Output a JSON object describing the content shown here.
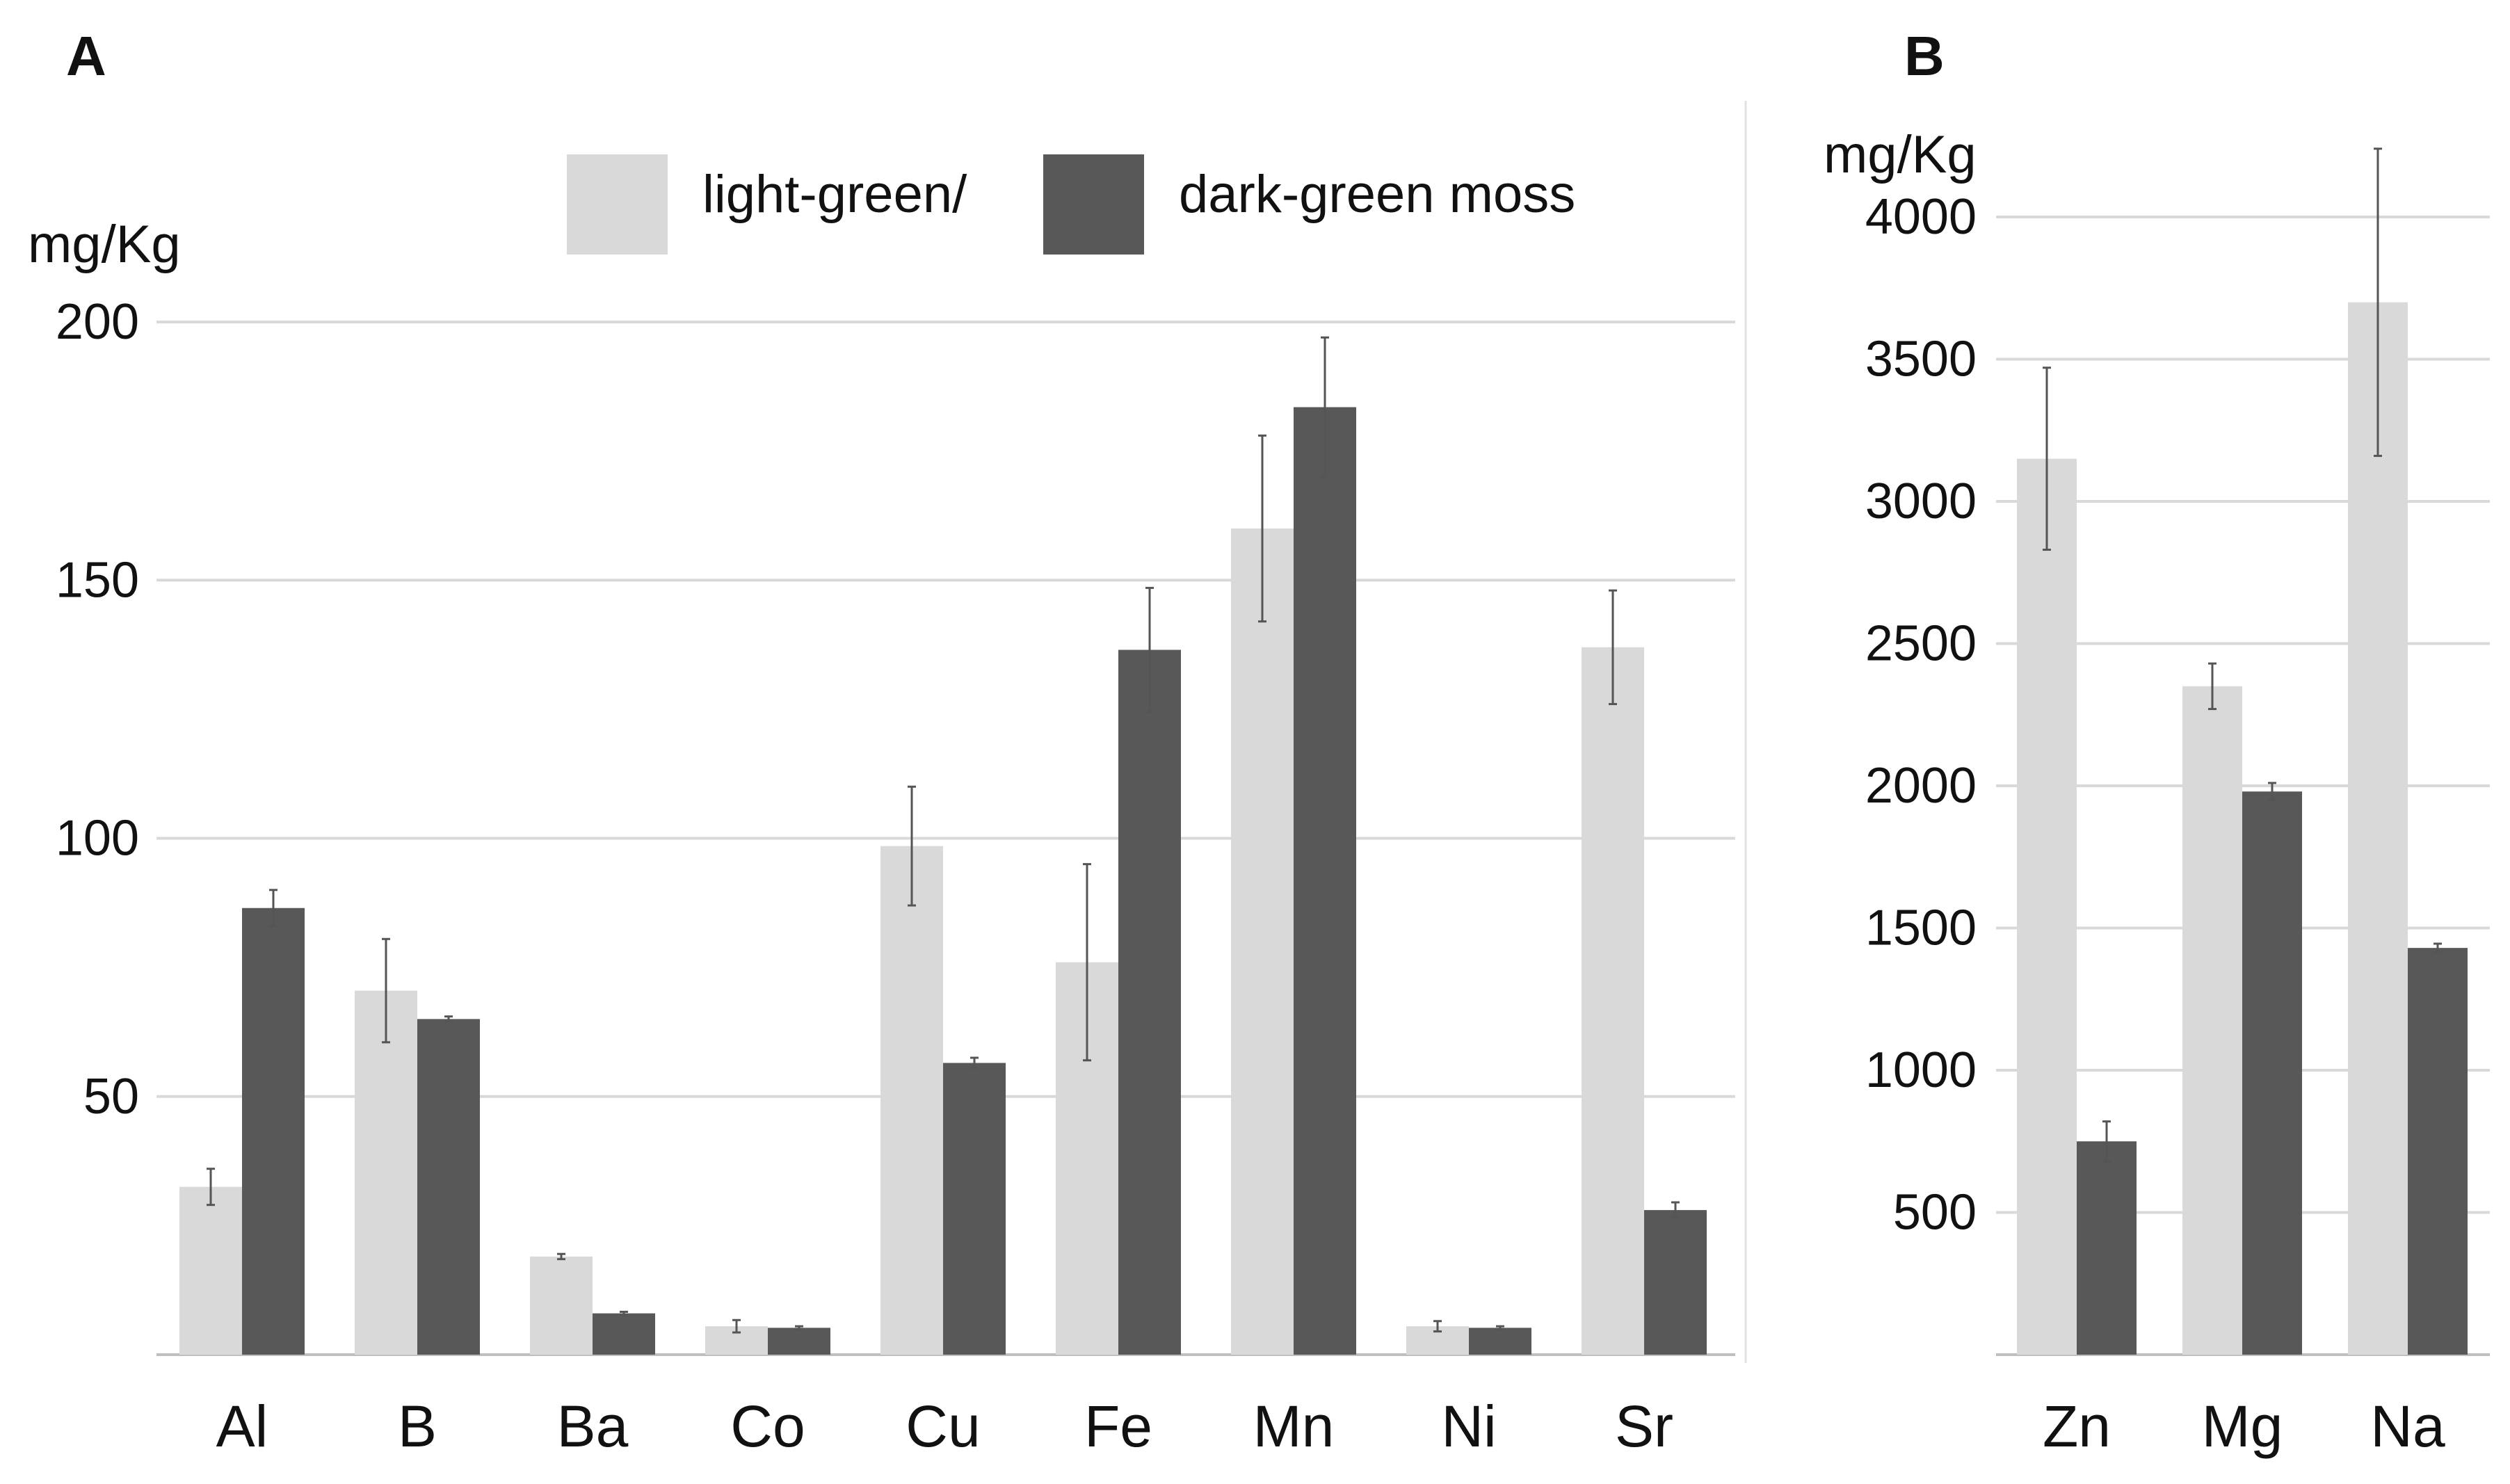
{
  "legend": {
    "items": [
      {
        "label": "light-green/",
        "color": "#d9d9d9"
      },
      {
        "label": "dark-green moss",
        "color": "#585858"
      }
    ]
  },
  "colors": {
    "light": "#d9d9d9",
    "dark": "#585858",
    "grid": "#d9d9d9",
    "axis": "#bfbfbf",
    "error_bar": "#555555"
  },
  "chart_data": [
    {
      "panel_label": "A",
      "type": "bar",
      "ylabel": "mg/Kg",
      "ylim": [
        0,
        200
      ],
      "yticks": [
        50,
        100,
        150,
        200
      ],
      "grid": true,
      "legend_position": "top-right",
      "categories": [
        "Al",
        "B",
        "Ba",
        "Co",
        "Cu",
        "Fe",
        "Mn",
        "Ni",
        "Sr"
      ],
      "series": [
        {
          "name": "light-green/",
          "values": [
            32.5,
            70.5,
            19,
            5.5,
            98.5,
            76,
            160,
            5.5,
            137
          ],
          "errors": [
            3.5,
            10,
            0.5,
            1.2,
            11.5,
            19,
            18,
            1,
            11
          ]
        },
        {
          "name": "dark-green moss",
          "values": [
            86.5,
            65,
            8,
            5.2,
            56.5,
            136.5,
            183.5,
            5.2,
            28
          ],
          "errors": [
            3.5,
            0.5,
            0.3,
            0.3,
            1,
            12,
            13.5,
            0.3,
            1.5
          ]
        }
      ]
    },
    {
      "panel_label": "B",
      "type": "bar",
      "ylabel": "mg/Kg",
      "ylim": [
        0,
        4000
      ],
      "yticks": [
        500,
        1000,
        1500,
        2000,
        2500,
        3000,
        3500,
        4000
      ],
      "grid": true,
      "categories": [
        "Zn",
        "Mg",
        "Na"
      ],
      "series": [
        {
          "name": "light-green/",
          "values": [
            3150,
            2350,
            3700
          ],
          "errors": [
            320,
            80,
            540
          ]
        },
        {
          "name": "dark-green moss",
          "values": [
            750,
            1980,
            1430
          ],
          "errors": [
            70,
            30,
            15
          ]
        }
      ]
    }
  ]
}
